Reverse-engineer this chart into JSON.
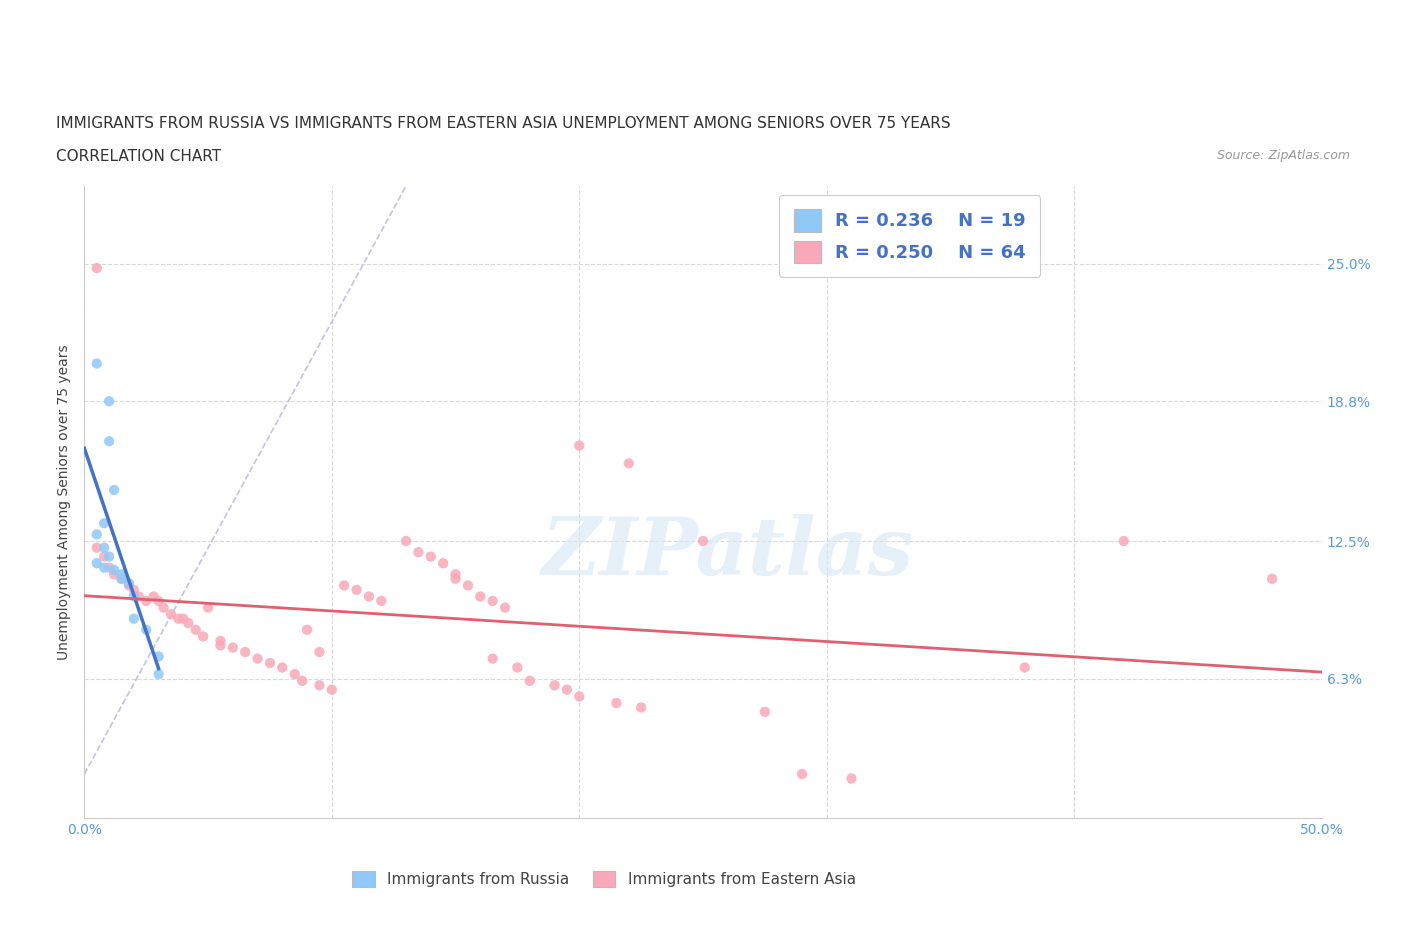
{
  "title_line1": "IMMIGRANTS FROM RUSSIA VS IMMIGRANTS FROM EASTERN ASIA UNEMPLOYMENT AMONG SENIORS OVER 75 YEARS",
  "title_line2": "CORRELATION CHART",
  "source": "Source: ZipAtlas.com",
  "ylabel": "Unemployment Among Seniors over 75 years",
  "xlim": [
    0.0,
    0.5
  ],
  "ylim": [
    0.0,
    0.285
  ],
  "xtick_labels": [
    "0.0%",
    "",
    "",
    "",
    "",
    "50.0%"
  ],
  "ytick_labels_right": [
    "6.3%",
    "12.5%",
    "18.8%",
    "25.0%"
  ],
  "ytick_vals_right": [
    0.063,
    0.125,
    0.188,
    0.25
  ],
  "legend_russia_R": "0.236",
  "legend_russia_N": "19",
  "legend_eastern_R": "0.250",
  "legend_eastern_N": "64",
  "russia_color": "#90C8F8",
  "eastern_color": "#F8A8B8",
  "russia_line_color": "#4472C4",
  "eastern_line_color": "#E06070",
  "russia_scatter": [
    [
      0.005,
      0.205
    ],
    [
      0.01,
      0.188
    ],
    [
      0.01,
      0.17
    ],
    [
      0.012,
      0.148
    ],
    [
      0.008,
      0.133
    ],
    [
      0.005,
      0.128
    ],
    [
      0.008,
      0.122
    ],
    [
      0.01,
      0.118
    ],
    [
      0.005,
      0.115
    ],
    [
      0.008,
      0.113
    ],
    [
      0.012,
      0.112
    ],
    [
      0.015,
      0.11
    ],
    [
      0.015,
      0.108
    ],
    [
      0.018,
      0.106
    ],
    [
      0.02,
      0.1
    ],
    [
      0.02,
      0.09
    ],
    [
      0.025,
      0.085
    ],
    [
      0.03,
      0.073
    ],
    [
      0.03,
      0.065
    ]
  ],
  "eastern_scatter": [
    [
      0.005,
      0.248
    ],
    [
      0.005,
      0.122
    ],
    [
      0.008,
      0.118
    ],
    [
      0.01,
      0.113
    ],
    [
      0.012,
      0.11
    ],
    [
      0.015,
      0.108
    ],
    [
      0.018,
      0.105
    ],
    [
      0.02,
      0.103
    ],
    [
      0.022,
      0.1
    ],
    [
      0.025,
      0.098
    ],
    [
      0.028,
      0.1
    ],
    [
      0.03,
      0.098
    ],
    [
      0.032,
      0.095
    ],
    [
      0.035,
      0.092
    ],
    [
      0.038,
      0.09
    ],
    [
      0.04,
      0.09
    ],
    [
      0.042,
      0.088
    ],
    [
      0.045,
      0.085
    ],
    [
      0.048,
      0.082
    ],
    [
      0.05,
      0.095
    ],
    [
      0.055,
      0.08
    ],
    [
      0.055,
      0.078
    ],
    [
      0.06,
      0.077
    ],
    [
      0.065,
      0.075
    ],
    [
      0.07,
      0.072
    ],
    [
      0.075,
      0.07
    ],
    [
      0.08,
      0.068
    ],
    [
      0.085,
      0.065
    ],
    [
      0.088,
      0.062
    ],
    [
      0.09,
      0.085
    ],
    [
      0.095,
      0.06
    ],
    [
      0.095,
      0.075
    ],
    [
      0.1,
      0.058
    ],
    [
      0.105,
      0.105
    ],
    [
      0.11,
      0.103
    ],
    [
      0.115,
      0.1
    ],
    [
      0.12,
      0.098
    ],
    [
      0.13,
      0.125
    ],
    [
      0.135,
      0.12
    ],
    [
      0.14,
      0.118
    ],
    [
      0.145,
      0.115
    ],
    [
      0.15,
      0.11
    ],
    [
      0.15,
      0.108
    ],
    [
      0.155,
      0.105
    ],
    [
      0.16,
      0.1
    ],
    [
      0.165,
      0.098
    ],
    [
      0.165,
      0.072
    ],
    [
      0.17,
      0.095
    ],
    [
      0.175,
      0.068
    ],
    [
      0.18,
      0.062
    ],
    [
      0.19,
      0.06
    ],
    [
      0.195,
      0.058
    ],
    [
      0.2,
      0.055
    ],
    [
      0.2,
      0.168
    ],
    [
      0.215,
      0.052
    ],
    [
      0.22,
      0.16
    ],
    [
      0.225,
      0.05
    ],
    [
      0.25,
      0.125
    ],
    [
      0.275,
      0.048
    ],
    [
      0.29,
      0.02
    ],
    [
      0.31,
      0.018
    ],
    [
      0.38,
      0.068
    ],
    [
      0.42,
      0.125
    ],
    [
      0.48,
      0.108
    ]
  ],
  "background_color": "#FFFFFF",
  "grid_color": "#D8D8D8",
  "title_fontsize": 11,
  "axis_label_fontsize": 10,
  "tick_fontsize": 10,
  "scatter_size": 55
}
